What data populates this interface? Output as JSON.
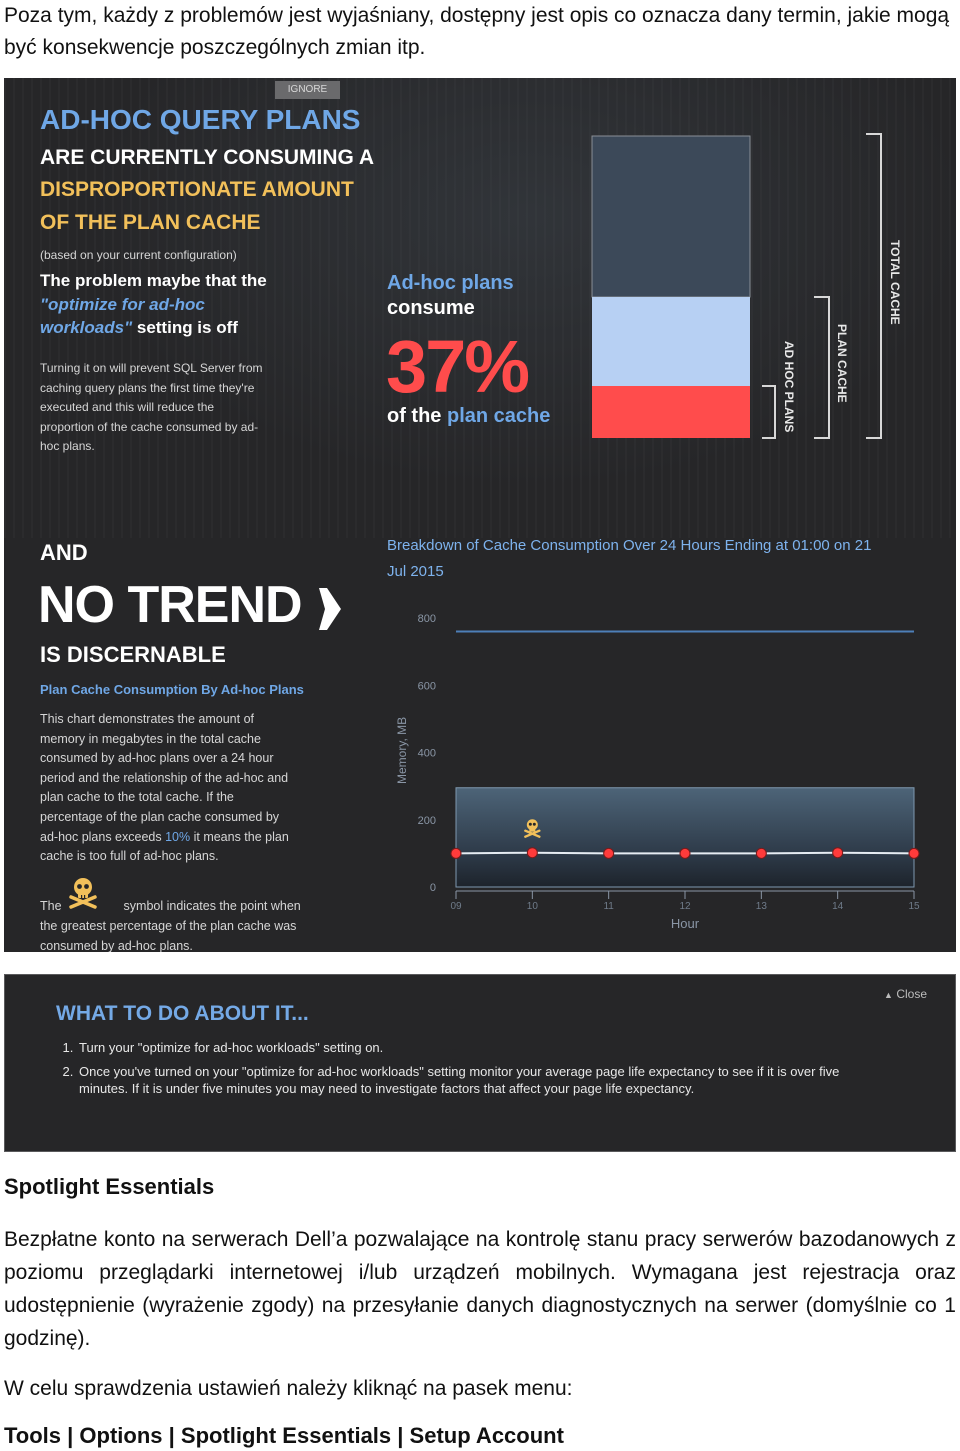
{
  "intro_text": "Poza tym, każdy z problemów jest wyjaśniany, dostępny jest opis co oznacza dany termin, jakie mogą być konsekwencje poszczególnych zmian itp.",
  "panel": {
    "ignore_label": "IGNORE",
    "headline_1": "AD-HOC QUERY PLANS",
    "headline_2": "ARE CURRENTLY CONSUMING A",
    "headline_3": "DISPROPORTIONATE AMOUNT",
    "headline_4": "OF THE PLAN CACHE",
    "config_note": "(based on your current configuration)",
    "problem_1": "The problem maybe that the",
    "problem_2": "\"optimize for ad-hoc",
    "problem_3": "workloads\"",
    "problem_3b": " setting is off",
    "turning_on": [
      "Turning it on will prevent SQL Server from",
      "caching query plans the first time they're",
      "executed and this will reduce the",
      "proportion of the cache consumed by ad-",
      "hoc plans."
    ],
    "consume_1": "Ad-hoc plans",
    "consume_2": "consume",
    "consume_pct": "37%",
    "consume_3a": "of the ",
    "consume_3b": "plan cache",
    "label_total_cache": "TOTAL CACHE",
    "label_plan_cache": "PLAN CACHE",
    "label_adhoc_plans": "AD HOC PLANS",
    "and": "AND",
    "no_trend": "NO TREND",
    "discernable": "IS DISCERNABLE",
    "chart_heading": "Plan Cache Consumption By Ad-hoc Plans",
    "chart_desc_lines": [
      "This chart demonstrates the amount of",
      "memory in megabytes in the total cache",
      "consumed by ad-hoc plans over a 24 hour",
      "period and the relationship of the ad-hoc and",
      "plan cache to the total cache. If the",
      "percentage of the plan cache consumed by"
    ],
    "chart_desc_pct_prefix": "ad-hoc plans exceeds ",
    "chart_desc_pct": "10%",
    "chart_desc_pct_suffix": " it means the plan",
    "chart_desc_last": "cache is too full of ad-hoc plans.",
    "symbol_the": "The",
    "symbol_rest": "symbol indicates the point when",
    "symbol_lines": [
      "the greatest percentage of the plan cache was",
      "consumed by ad-hoc plans."
    ],
    "breakdown_title_1": "Breakdown of Cache Consumption Over 24 Hours Ending at 01:00 on 21",
    "breakdown_title_2": "Jul 2015",
    "colors": {
      "accent_blue": "#6fa7e6",
      "gold": "#f2c05a",
      "red": "#ff4c4c",
      "light_blue": "#b7d0f3",
      "slate": "#3c4959"
    }
  },
  "chart_data": [
    {
      "type": "bar",
      "stacked": true,
      "categories": [
        "TOTAL CACHE"
      ],
      "segments": [
        {
          "name": "AD HOC PLANS",
          "fraction_of_plan_cache": 0.37,
          "color": "#ff4c4c"
        },
        {
          "name": "PLAN CACHE",
          "color": "#b7d0f3"
        },
        {
          "name": "TOTAL CACHE",
          "color": "#3c4959"
        }
      ]
    },
    {
      "type": "line",
      "title": "Breakdown of Cache Consumption Over 24 Hours Ending at 01:00 on 21 Jul 2015",
      "xlabel": "Hour",
      "ylabel": "Memory, MB",
      "x": [
        "09",
        "10",
        "11",
        "12",
        "13",
        "14",
        "15"
      ],
      "y_ticks": [
        0,
        200,
        400,
        600,
        800
      ],
      "ylim": [
        0,
        800
      ],
      "series": [
        {
          "name": "total cache",
          "values": [
            760,
            760,
            760,
            760,
            760,
            760,
            760
          ]
        },
        {
          "name": "plan cache",
          "values": [
            295,
            295,
            295,
            295,
            295,
            295,
            295
          ]
        },
        {
          "name": "ad-hoc plans",
          "values": [
            100,
            102,
            100,
            100,
            100,
            102,
            100
          ]
        }
      ],
      "marker_hour": "10"
    }
  ],
  "todo": {
    "title": "WHAT TO DO ABOUT IT...",
    "close_label": "Close",
    "items": [
      "Turn your \"optimize for ad-hoc workloads\" setting on.",
      "Once you've turned on your \"optimize for ad-hoc workloads\" setting monitor your average page life expectancy to see if it is over five minutes. If it is under five minutes you may need to investigate factors that affect your page life expectancy."
    ]
  },
  "section_title": "Spotlight Essentials",
  "para_1": "Bezpłatne konto na serwerach Dell’a pozwalające na kontrolę stanu pracy serwerów bazodanowych z poziomu przeglądarki internetowej i/lub urządzeń mobilnych. Wymagana jest rejestracja oraz udostępnienie (wyrażenie zgody) na przesyłanie danych diagnostycznych na serwer (domyślnie co 1 godzinę).",
  "para_2": "W celu sprawdzenia ustawień należy kliknąć na pasek menu:",
  "menu_path": "Tools | Options | Spotlight Essentials | Setup Account"
}
